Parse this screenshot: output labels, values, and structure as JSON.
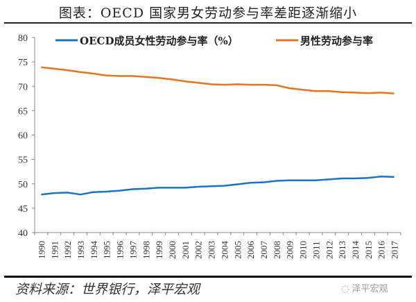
{
  "title": "图表：OECD 国家男女劳动参与率差距逐渐缩小",
  "source": "资料来源：世界银行，泽平宏观",
  "watermark": "泽平宏观",
  "chart_data": {
    "type": "line",
    "title": "图表：OECD 国家男女劳动参与率差距逐渐缩小",
    "xlabel": "",
    "ylabel": "",
    "ylim": [
      40,
      80
    ],
    "yticks": [
      40,
      45,
      50,
      55,
      60,
      65,
      70,
      75,
      80
    ],
    "legend": "top",
    "grid": false,
    "x": [
      "1990",
      "1991",
      "1992",
      "1993",
      "1994",
      "1995",
      "1996",
      "1997",
      "1998",
      "1999",
      "2000",
      "2001",
      "2002",
      "2003",
      "2004",
      "2005",
      "2006",
      "2007",
      "2008",
      "2009",
      "2010",
      "2011",
      "2012",
      "2013",
      "2014",
      "2015",
      "2016",
      "2017"
    ],
    "series": [
      {
        "name": "OECD成员女性劳动参与率（%）",
        "color": "#1874c8",
        "values": [
          47.8,
          48.1,
          48.2,
          47.8,
          48.3,
          48.4,
          48.6,
          48.9,
          49.0,
          49.2,
          49.2,
          49.2,
          49.4,
          49.5,
          49.6,
          49.9,
          50.2,
          50.3,
          50.6,
          50.7,
          50.7,
          50.7,
          50.9,
          51.1,
          51.1,
          51.2,
          51.5,
          51.4
        ]
      },
      {
        "name": "男性劳动参与率",
        "color": "#e8731e",
        "values": [
          73.9,
          73.6,
          73.3,
          72.9,
          72.6,
          72.2,
          72.1,
          72.1,
          71.9,
          71.7,
          71.4,
          71.0,
          70.7,
          70.4,
          70.3,
          70.4,
          70.3,
          70.3,
          70.2,
          69.6,
          69.3,
          69.0,
          69.0,
          68.8,
          68.7,
          68.6,
          68.7,
          68.5
        ]
      }
    ]
  }
}
